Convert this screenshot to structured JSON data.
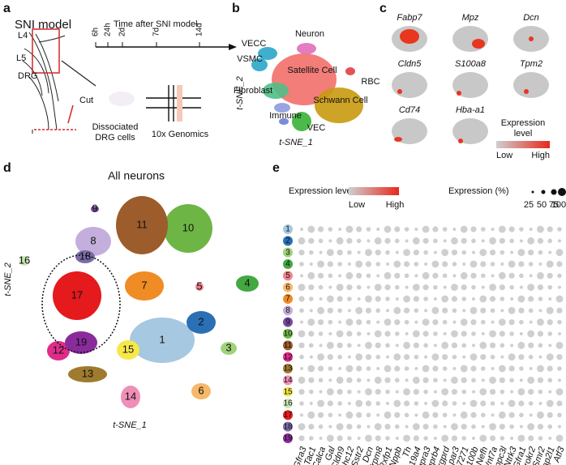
{
  "panel_a": {
    "letter": "a",
    "title": "SNI model",
    "labels": [
      "L4",
      "L5",
      "DRG",
      "Cut"
    ],
    "timeline_title": "Time after SNI model",
    "timeline_ticks": [
      "6h",
      "24h",
      "2d",
      "7d",
      "14d"
    ],
    "cells_lines": [
      "Dissociated",
      "DRG cells"
    ],
    "platform": "10x Genomics"
  },
  "panel_b": {
    "letter": "b",
    "cell_types": [
      "Neuron",
      "VECC",
      "VSMC",
      "Satellite Cell",
      "Fibroblast",
      "Schwann Cell",
      "RBC",
      "Immune",
      "VEC"
    ],
    "y_axis": "t-SNE_2",
    "x_axis": "t-SNE_1"
  },
  "panel_c": {
    "letter": "c",
    "genes": [
      "Fabp7",
      "Mpz",
      "Dcn",
      "Cldn5",
      "S100a8",
      "Tpm2",
      "Cd74",
      "Hba-a1"
    ],
    "legend_title": [
      "Expression",
      "level"
    ],
    "legend_low": "Low",
    "legend_high": "High"
  },
  "panel_d": {
    "letter": "d",
    "title": "All neurons",
    "clusters": [
      "1",
      "2",
      "3",
      "4",
      "5",
      "6",
      "7",
      "8",
      "9",
      "10",
      "11",
      "12",
      "13",
      "14",
      "15",
      "16",
      "17",
      "18",
      "19"
    ],
    "y_axis": "t-SNE_2",
    "x_axis": "t-SNE_1"
  },
  "panel_e": {
    "letter": "e",
    "color_legend": "Expression level",
    "low": "Low",
    "high": "High",
    "size_legend": "Expression (%)",
    "sizes": [
      "25",
      "50",
      "75",
      "100"
    ],
    "rows": [
      "1",
      "2",
      "3",
      "4",
      "5",
      "6",
      "7",
      "8",
      "9",
      "10",
      "11",
      "12",
      "13",
      "14",
      "15",
      "16",
      "17",
      "18",
      "19"
    ],
    "genes": [
      "Gfra3",
      "Tac1",
      "Calca",
      "Gal",
      "Cldn9",
      "Zcchc12",
      "Sstr2",
      "Dcn",
      "Trpm8",
      "Rxfp1",
      "Nppb",
      "Th",
      "Fam19a4",
      "Mrgpra3",
      "Mrgprb4",
      "Mrgprd",
      "Lpar3",
      "Gm7271",
      "S100b",
      "Nefh",
      "Wnt7a",
      "Trappc3l",
      "Ntrk3",
      "Gfra1",
      "Prokr2",
      "Smr2",
      "Baiap2l1",
      "Atf3"
    ]
  }
}
